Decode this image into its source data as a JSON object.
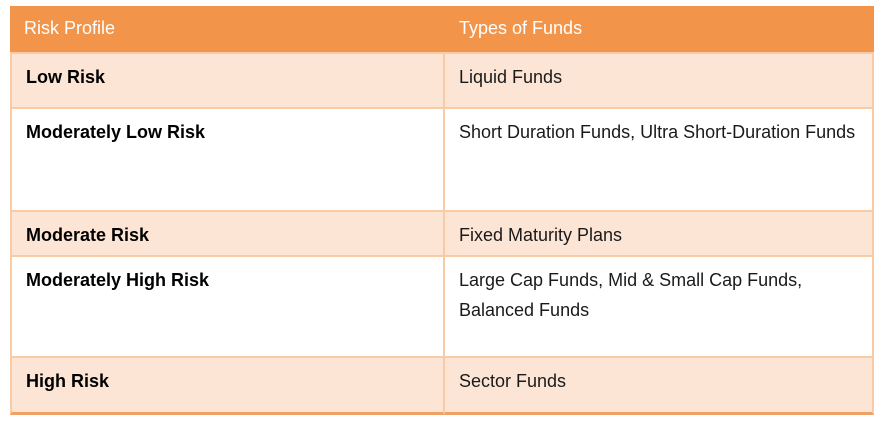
{
  "table": {
    "columns": [
      {
        "label": "Risk Profile"
      },
      {
        "label": "Types of Funds"
      }
    ],
    "rows": [
      {
        "risk_profile": "Low Risk",
        "fund_types": "Liquid Funds"
      },
      {
        "risk_profile": "Moderately Low Risk",
        "fund_types": "Short Duration Funds, Ultra Short-Duration Funds"
      },
      {
        "risk_profile": "Moderate Risk",
        "fund_types": "Fixed Maturity Plans"
      },
      {
        "risk_profile": "Moderately High Risk",
        "fund_types": "Large Cap Funds, Mid & Small Cap Funds, Balanced Funds"
      },
      {
        "risk_profile": "High Risk",
        "fund_types": "Sector Funds"
      }
    ],
    "colors": {
      "header_bg": "#F2944A",
      "header_text": "#FFFFFF",
      "band_bg": "#FCE5D5",
      "plain_bg": "#FFFFFF",
      "inner_border": "#F6CBA6",
      "bottom_border": "#F0A165",
      "body_text": "#1A1A1A"
    }
  }
}
